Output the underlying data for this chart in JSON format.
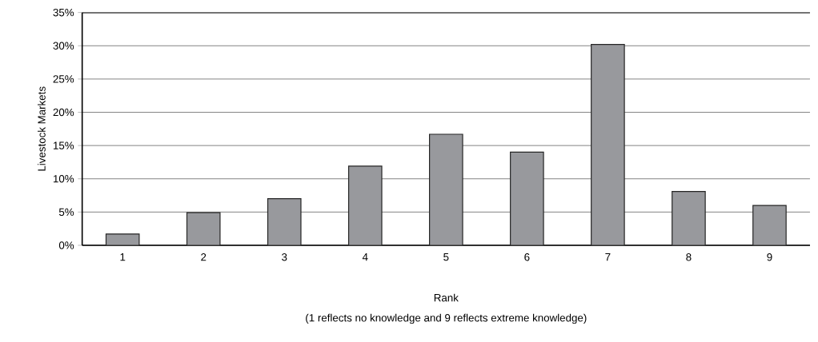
{
  "chart_data": {
    "type": "bar",
    "xlabel": "Rank",
    "ylabel": "Livestock Markets",
    "annotations": [
      "(1 reflects no knowledge and 9 reflects extreme knowledge)"
    ],
    "categories": [
      "1",
      "2",
      "3",
      "4",
      "5",
      "6",
      "7",
      "8",
      "9"
    ],
    "values": [
      1.7,
      4.9,
      7.0,
      11.9,
      16.7,
      14.0,
      30.2,
      8.1,
      6.0
    ],
    "color": "#98999d",
    "ylim": [
      0,
      35
    ],
    "yticks": [
      {
        "value": 0,
        "label": "0%"
      },
      {
        "value": 5,
        "label": "5%"
      },
      {
        "value": 10,
        "label": "10%"
      },
      {
        "value": 15,
        "label": "15%"
      },
      {
        "value": 20,
        "label": "20%"
      },
      {
        "value": 25,
        "label": "25%"
      },
      {
        "value": 30,
        "label": "30%"
      },
      {
        "value": 35,
        "label": "35%"
      }
    ],
    "grid": "y",
    "legend": false
  }
}
